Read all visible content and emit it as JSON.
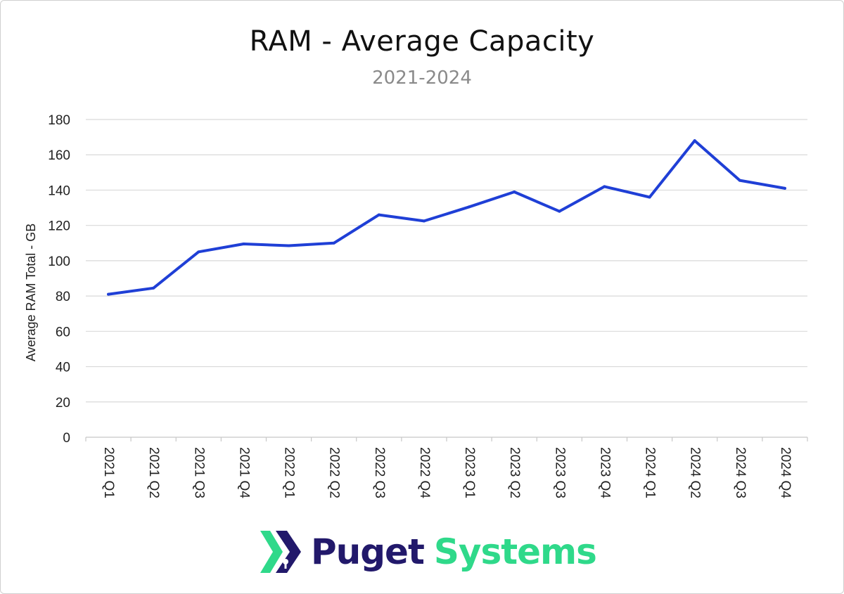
{
  "chart_data": {
    "type": "line",
    "title": "RAM - Average Capacity",
    "subtitle": "2021-2024",
    "xlabel": "",
    "ylabel": "Average RAM Total - GB",
    "ylim": [
      0,
      180
    ],
    "yticks": [
      0,
      20,
      40,
      60,
      80,
      100,
      120,
      140,
      160,
      180
    ],
    "grid": true,
    "categories": [
      "2021 Q1",
      "2021 Q2",
      "2021 Q3",
      "2021 Q4",
      "2022 Q1",
      "2022 Q2",
      "2022 Q3",
      "2022 Q4",
      "2023 Q1",
      "2023 Q2",
      "2023 Q3",
      "2023 Q4",
      "2024 Q1",
      "2024 Q2",
      "2024 Q3",
      "2024 Q4"
    ],
    "series": [
      {
        "name": "Average RAM Total - GB",
        "color": "#1f3fd6",
        "values": [
          81,
          84.5,
          105,
          109.5,
          108.5,
          110,
          126,
          122.5,
          130.5,
          139,
          128,
          142,
          136,
          168,
          145.5,
          141
        ]
      }
    ]
  },
  "logo": {
    "word1": "Puget",
    "word2": "Systems",
    "colors": {
      "navy": "#22196b",
      "green": "#2fd98a"
    }
  }
}
